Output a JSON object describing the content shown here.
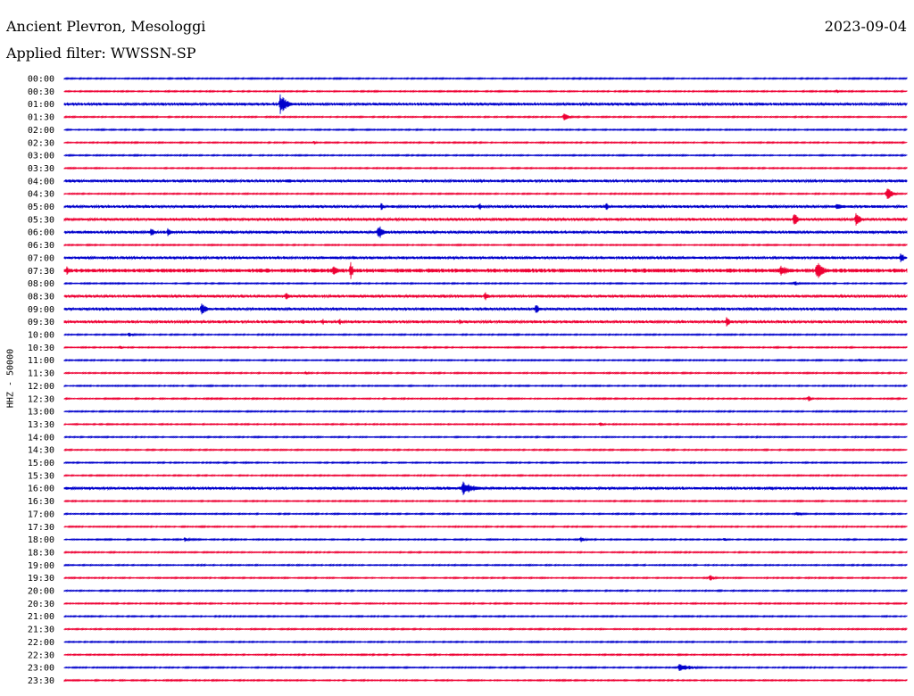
{
  "header": {
    "station": "Ancient Plevron, Mesologgi",
    "date": "2023-09-04",
    "filter": "Applied filter: WWSSN-SP"
  },
  "chart_data": {
    "type": "line",
    "ylabel": "HHZ - 50000",
    "row_labels": [
      "00:00",
      "00:30",
      "01:00",
      "01:30",
      "02:00",
      "02:30",
      "03:00",
      "03:30",
      "04:00",
      "04:30",
      "05:00",
      "05:30",
      "06:00",
      "06:30",
      "07:00",
      "07:30",
      "08:00",
      "08:30",
      "09:00",
      "09:30",
      "10:00",
      "10:30",
      "11:00",
      "11:30",
      "12:00",
      "12:30",
      "13:00",
      "13:30",
      "14:00",
      "14:30",
      "15:00",
      "15:30",
      "16:00",
      "16:30",
      "17:00",
      "17:30",
      "18:00",
      "18:30",
      "19:00",
      "19:30",
      "20:00",
      "20:30",
      "21:00",
      "21:30",
      "22:00",
      "22:30",
      "23:00",
      "23:30"
    ],
    "row_colors": [
      "#0000cc",
      "#ee0033"
    ],
    "background_noise": [
      1,
      1,
      2,
      1,
      1,
      1,
      1,
      1,
      2,
      1,
      2,
      2,
      2,
      1,
      2,
      3,
      1,
      2,
      2,
      2,
      1,
      1,
      1,
      1,
      1,
      1,
      1,
      1,
      1,
      1,
      1,
      1,
      2,
      1,
      1,
      1,
      1,
      1,
      1,
      1,
      1,
      1,
      1,
      1,
      1,
      1,
      1,
      1
    ],
    "events": [
      {
        "row": 0,
        "minute": 4.3,
        "amp": 2,
        "dur": 0.4
      },
      {
        "row": 1,
        "minute": 27.5,
        "amp": 2,
        "dur": 0.4
      },
      {
        "row": 2,
        "minute": 7.7,
        "amp": 13,
        "dur": 0.6
      },
      {
        "row": 3,
        "minute": 17.8,
        "amp": 4,
        "dur": 0.6
      },
      {
        "row": 5,
        "minute": 8.9,
        "amp": 2,
        "dur": 0.4
      },
      {
        "row": 8,
        "minute": 8.0,
        "amp": 3,
        "dur": 0.5
      },
      {
        "row": 9,
        "minute": 29.3,
        "amp": 8,
        "dur": 0.5
      },
      {
        "row": 10,
        "minute": 11.3,
        "amp": 5,
        "dur": 0.2
      },
      {
        "row": 10,
        "minute": 14.8,
        "amp": 6,
        "dur": 0.2
      },
      {
        "row": 10,
        "minute": 19.3,
        "amp": 7,
        "dur": 0.2
      },
      {
        "row": 10,
        "minute": 27.5,
        "amp": 3,
        "dur": 1.5
      },
      {
        "row": 11,
        "minute": 26.0,
        "amp": 10,
        "dur": 0.3
      },
      {
        "row": 11,
        "minute": 28.2,
        "amp": 10,
        "dur": 0.4
      },
      {
        "row": 12,
        "minute": 3.1,
        "amp": 6,
        "dur": 0.3
      },
      {
        "row": 12,
        "minute": 3.7,
        "amp": 7,
        "dur": 0.3
      },
      {
        "row": 12,
        "minute": 11.2,
        "amp": 10,
        "dur": 0.4
      },
      {
        "row": 14,
        "minute": 4.5,
        "amp": 2,
        "dur": 1.0
      },
      {
        "row": 14,
        "minute": 29.8,
        "amp": 7,
        "dur": 0.3
      },
      {
        "row": 15,
        "minute": 0.1,
        "amp": 7,
        "dur": 0.2
      },
      {
        "row": 15,
        "minute": 9.6,
        "amp": 8,
        "dur": 0.4
      },
      {
        "row": 15,
        "minute": 10.2,
        "amp": 10,
        "dur": 0.3
      },
      {
        "row": 15,
        "minute": 11.3,
        "amp": 4,
        "dur": 0.2
      },
      {
        "row": 15,
        "minute": 20.8,
        "amp": 3,
        "dur": 0.3
      },
      {
        "row": 15,
        "minute": 25.5,
        "amp": 6,
        "dur": 1.2
      },
      {
        "row": 15,
        "minute": 26.8,
        "amp": 11,
        "dur": 0.7
      },
      {
        "row": 16,
        "minute": 26.0,
        "amp": 3,
        "dur": 0.5
      },
      {
        "row": 17,
        "minute": 7.9,
        "amp": 6,
        "dur": 0.3
      },
      {
        "row": 17,
        "minute": 15.0,
        "amp": 6,
        "dur": 0.3
      },
      {
        "row": 18,
        "minute": 4.9,
        "amp": 8,
        "dur": 0.5
      },
      {
        "row": 18,
        "minute": 16.8,
        "amp": 6,
        "dur": 0.4
      },
      {
        "row": 19,
        "minute": 8.5,
        "amp": 4,
        "dur": 0.2
      },
      {
        "row": 19,
        "minute": 9.2,
        "amp": 4,
        "dur": 0.2
      },
      {
        "row": 19,
        "minute": 9.8,
        "amp": 5,
        "dur": 0.2
      },
      {
        "row": 19,
        "minute": 14.1,
        "amp": 4,
        "dur": 0.2
      },
      {
        "row": 19,
        "minute": 23.6,
        "amp": 8,
        "dur": 0.3
      },
      {
        "row": 20,
        "minute": 2.3,
        "amp": 3,
        "dur": 0.5
      },
      {
        "row": 21,
        "minute": 2.0,
        "amp": 2,
        "dur": 0.3
      },
      {
        "row": 22,
        "minute": 28.3,
        "amp": 2,
        "dur": 0.5
      },
      {
        "row": 23,
        "minute": 8.6,
        "amp": 2,
        "dur": 0.3
      },
      {
        "row": 25,
        "minute": 26.5,
        "amp": 4,
        "dur": 0.3
      },
      {
        "row": 27,
        "minute": 19.1,
        "amp": 3,
        "dur": 0.3
      },
      {
        "row": 32,
        "minute": 14.2,
        "amp": 9,
        "dur": 1.1
      },
      {
        "row": 34,
        "minute": 26.1,
        "amp": 3,
        "dur": 0.5
      },
      {
        "row": 36,
        "minute": 4.3,
        "amp": 3,
        "dur": 0.4
      },
      {
        "row": 36,
        "minute": 18.4,
        "amp": 3,
        "dur": 0.5
      },
      {
        "row": 36,
        "minute": 23.5,
        "amp": 2,
        "dur": 0.5
      },
      {
        "row": 39,
        "minute": 23.0,
        "amp": 4,
        "dur": 0.4
      },
      {
        "row": 46,
        "minute": 21.9,
        "amp": 5,
        "dur": 1.2
      }
    ]
  }
}
